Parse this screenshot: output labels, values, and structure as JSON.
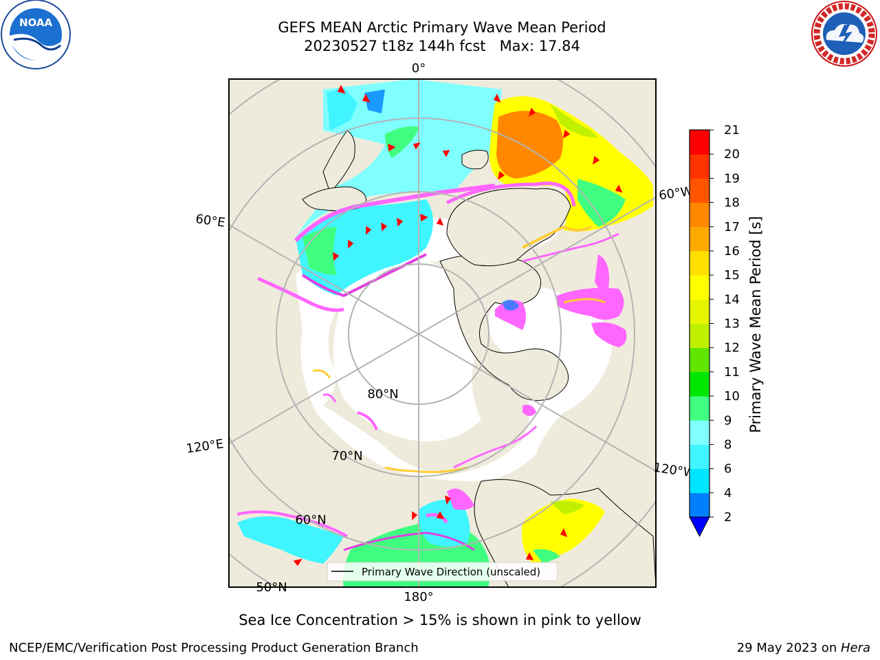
{
  "header": {
    "title_line1": "GEFS MEAN Arctic Primary Wave Mean Period",
    "title_line2": "20230527 t18z 144h fcst   Max: 17.84"
  },
  "logos": {
    "noaa_text": "NOAA",
    "noaa_ring": "NATIONAL OCEANIC AND ATMOSPHERIC ADMINISTRATION",
    "noaa_ring_bottom": "U.S. DEPARTMENT OF COMMERCE",
    "nws_ring": "NATIONAL WEATHER SERVICE"
  },
  "map": {
    "projection": "north-polar-stereographic",
    "meridian_labels": {
      "m0": "0°",
      "m60e": "60°E",
      "m60w": "60°W",
      "m120e": "120°E",
      "m120w": "120°W",
      "m180": "180°"
    },
    "parallel_labels": {
      "p80": "80°N",
      "p70": "70°N",
      "p60": "60°N",
      "p50": "50°N"
    },
    "legend": {
      "label": "Primary Wave Direction (unscaled)"
    },
    "colors": {
      "land": "#efebdc",
      "coast": "#000000",
      "grid": "#b3b3b3",
      "arrow": "#ff0000",
      "ice_pink": "#ff66ff",
      "ice_magenta": "#e040e0",
      "ice_yellow": "#ffcc33"
    }
  },
  "colorbar": {
    "label": "Primary Wave Mean Period [s]",
    "ticks": [
      "21",
      "20",
      "19",
      "18",
      "17",
      "16",
      "15",
      "14",
      "13",
      "12",
      "11",
      "10",
      "9",
      "8",
      "6",
      "4",
      "2"
    ],
    "levels": [
      2,
      4,
      6,
      8,
      9,
      10,
      11,
      12,
      13,
      14,
      15,
      16,
      17,
      18,
      19,
      20,
      21
    ],
    "colors": [
      "#0080ff",
      "#00e5ff",
      "#40f5ff",
      "#80ffff",
      "#40ff80",
      "#00e600",
      "#60e600",
      "#c0f000",
      "#e6f500",
      "#ffff00",
      "#ffdf00",
      "#ffaa00",
      "#ff8800",
      "#ff5500",
      "#ff3300",
      "#ff0000"
    ],
    "under_color": "#0000ff",
    "extend": "min"
  },
  "footer": {
    "note": "Sea Ice Concentration > 15% is shown in pink to yellow",
    "credit": "NCEP/EMC/Verification Post Processing Product Generation Branch",
    "date": "29 May 2023 on ",
    "machine": "Hera"
  }
}
